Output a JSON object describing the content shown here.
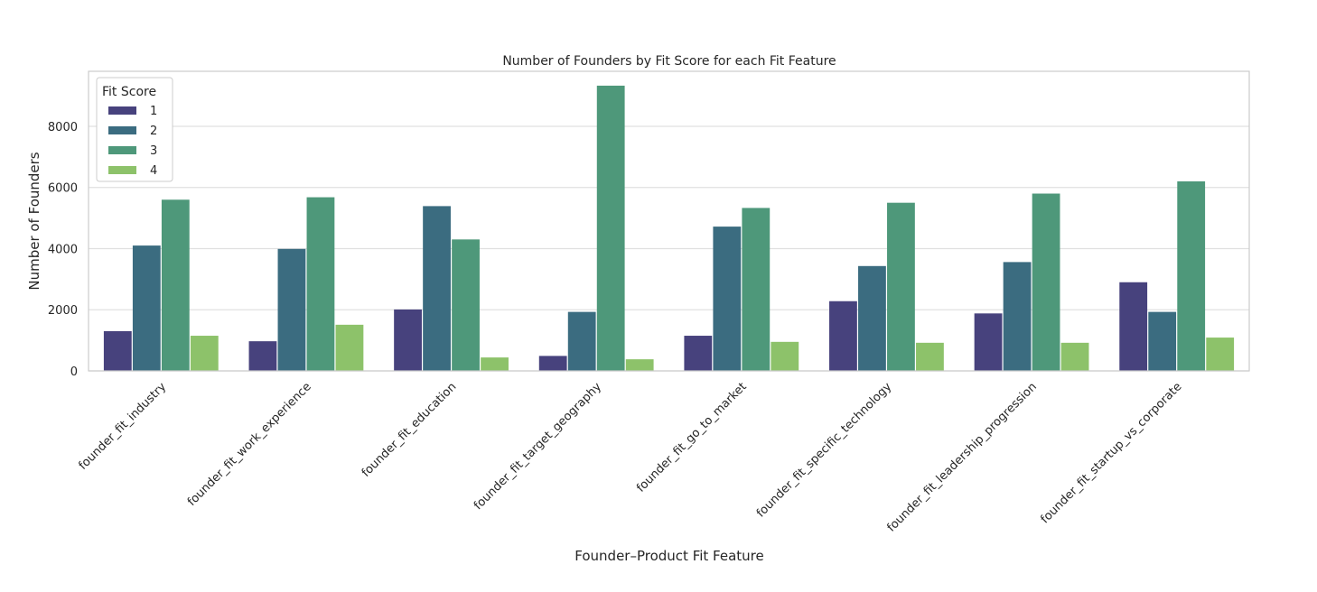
{
  "chart_data": {
    "type": "bar",
    "title": "Number of Founders by Fit Score for each Fit Feature",
    "xlabel": "Founder–Product Fit Feature",
    "ylabel": "Number of Founders",
    "ylim": [
      0,
      9800
    ],
    "yticks": [
      0,
      2000,
      4000,
      6000,
      8000
    ],
    "yticklabels": [
      "0",
      "2000",
      "4000",
      "6000",
      "8000"
    ],
    "grid": true,
    "legend": {
      "title": "Fit Score",
      "position": "top-left"
    },
    "categories": [
      "founder_fit_industry",
      "founder_fit_work_experience",
      "founder_fit_education",
      "founder_fit_target_geography",
      "founder_fit_go_to_market",
      "founder_fit_specific_technology",
      "founder_fit_leadership_progression",
      "founder_fit_startup_vs_corporate"
    ],
    "series": [
      {
        "name": "1",
        "color": "#47427d",
        "values": [
          1300,
          970,
          2010,
          490,
          1150,
          2280,
          1880,
          2900
        ]
      },
      {
        "name": "2",
        "color": "#3b6c80",
        "values": [
          4100,
          3990,
          5390,
          1930,
          4720,
          3430,
          3560,
          1930
        ]
      },
      {
        "name": "3",
        "color": "#4e987a",
        "values": [
          5600,
          5680,
          4300,
          9330,
          5330,
          5500,
          5800,
          6200
        ]
      },
      {
        "name": "4",
        "color": "#8dc26a",
        "values": [
          1150,
          1510,
          440,
          380,
          950,
          920,
          920,
          1090
        ]
      }
    ]
  }
}
